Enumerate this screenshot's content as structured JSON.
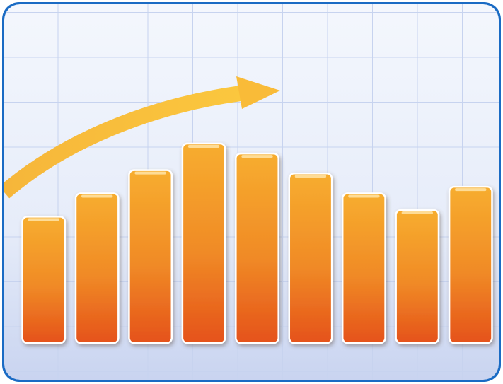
{
  "chart_data": {
    "type": "bar",
    "categories": [
      null,
      null,
      null,
      null,
      null,
      null,
      null,
      null,
      null
    ],
    "values": [
      38,
      45,
      52,
      60,
      57,
      51,
      45,
      40,
      47
    ],
    "ylim": [
      0,
      100
    ],
    "color": "#ee7a22"
  }
}
